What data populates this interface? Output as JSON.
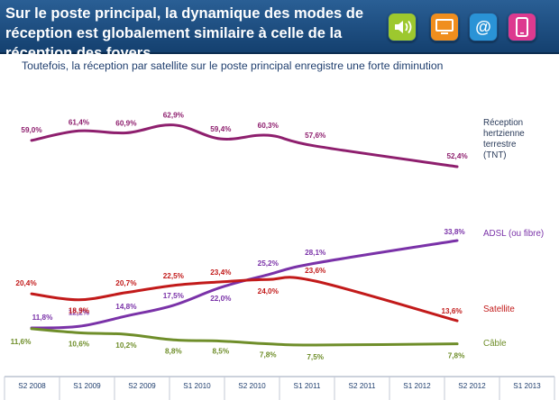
{
  "title": "Sur le poste principal, la dynamique des modes de réception est globalement similaire à celle de la réception des foyers",
  "subtitle": "Toutefois, la réception par satellite sur le poste principal enregistre une forte diminution",
  "icons": [
    {
      "name": "sound-icon",
      "bg": "#9dc82e"
    },
    {
      "name": "tv-icon",
      "bg": "#f08e1e"
    },
    {
      "name": "at-icon",
      "bg": "#2a93d6"
    },
    {
      "name": "mobile-icon",
      "bg": "#dd3a8f"
    }
  ],
  "chart_data": {
    "type": "line",
    "x": [
      "S2 2008",
      "S1 2009",
      "S2 2009",
      "S1 2010",
      "S2 2010",
      "S1 2011",
      "S2 2011",
      "S1 2012",
      "S2 2012",
      "S1 2013"
    ],
    "series": [
      {
        "name": "Réception hertzienne terrestre (TNT)",
        "color": "#8e1f6e",
        "values": [
          59.0,
          61.4,
          60.9,
          62.9,
          59.4,
          60.3,
          57.6,
          null,
          null,
          52.4
        ],
        "labels": [
          "59,0%",
          "61,4%",
          "60,9%",
          "62,9%",
          "59,4%",
          "60,3%",
          "57,6%",
          null,
          null,
          "52,4%"
        ]
      },
      {
        "name": "ADSL (ou fibre)",
        "color": "#7a32a8",
        "values": [
          11.8,
          12.2,
          14.8,
          17.5,
          22.0,
          25.2,
          28.1,
          null,
          null,
          33.8
        ],
        "labels": [
          "11,8%",
          "12,2%",
          "14,8%",
          "17,5%",
          "22,0%",
          "25,2%",
          "28,1%",
          null,
          null,
          "33,8%"
        ]
      },
      {
        "name": "Satellite",
        "color": "#c21a1a",
        "values": [
          20.4,
          18.9,
          20.7,
          22.5,
          23.4,
          24.0,
          23.6,
          null,
          null,
          13.6
        ],
        "labels": [
          "20,4%",
          "18,9%",
          "20,7%",
          "22,5%",
          "23,4%",
          "24,0%",
          "23,6%",
          null,
          null,
          "13,6%"
        ]
      },
      {
        "name": "Câble",
        "color": "#6f8e2a",
        "values": [
          11.6,
          10.6,
          10.2,
          8.8,
          8.5,
          7.8,
          7.5,
          null,
          null,
          7.8
        ],
        "labels": [
          "11,6%",
          "10,6%",
          "10,2%",
          "8,8%",
          "8,5%",
          "7,8%",
          "7,5%",
          null,
          null,
          "7,8%"
        ]
      }
    ]
  }
}
